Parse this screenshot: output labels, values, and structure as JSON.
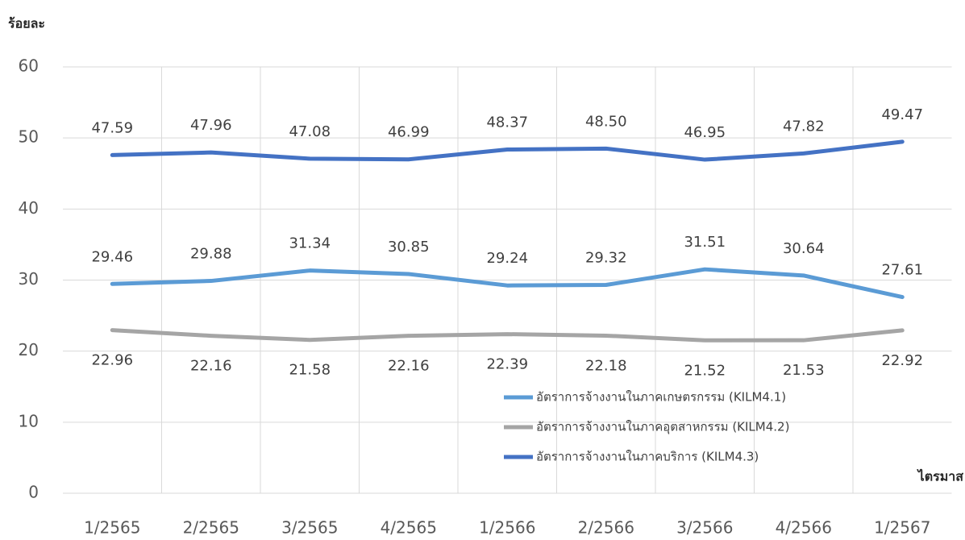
{
  "chart_data": {
    "type": "line",
    "y_axis_label": "ร้อยละ",
    "x_axis_label": "ไตรมาส",
    "categories": [
      "1/2565",
      "2/2565",
      "3/2565",
      "4/2565",
      "1/2566",
      "2/2566",
      "3/2566",
      "4/2566",
      "1/2567"
    ],
    "series": [
      {
        "name": "อัตราการจ้างงานในภาคเกษตรกรรม (KILM4.1)",
        "color": "#5b9bd5",
        "values": [
          29.46,
          29.88,
          31.34,
          30.85,
          29.24,
          29.32,
          31.51,
          30.64,
          27.61
        ]
      },
      {
        "name": "อัตราการจ้างงานในภาคอุตสาหกรรม (KILM4.2)",
        "color": "#a5a5a5",
        "values": [
          22.96,
          22.16,
          21.58,
          22.16,
          22.39,
          22.18,
          21.52,
          21.53,
          22.92
        ]
      },
      {
        "name": "อัตราการจ้างงานในภาคบริการ  (KILM4.3)",
        "color": "#4472c4",
        "values": [
          47.59,
          47.96,
          47.08,
          46.99,
          48.37,
          48.5,
          46.95,
          47.82,
          49.47
        ]
      }
    ],
    "value_labels": [
      [
        "29.46",
        "29.88",
        "31.34",
        "30.85",
        "29.24",
        "29.32",
        "31.51",
        "30.64",
        "27.61"
      ],
      [
        "22.96",
        "22.16",
        "21.58",
        "22.16",
        "22.39",
        "22.18",
        "21.52",
        "21.53",
        "22.92"
      ],
      [
        "47.59",
        "47.96",
        "47.08",
        "46.99",
        "48.37",
        "48.50",
        "46.95",
        "47.82",
        "49.47"
      ]
    ],
    "ylim": [
      0,
      60
    ],
    "yticks": [
      0,
      10,
      20,
      30,
      40,
      50,
      60
    ],
    "grid": true,
    "legend": "lower right"
  }
}
